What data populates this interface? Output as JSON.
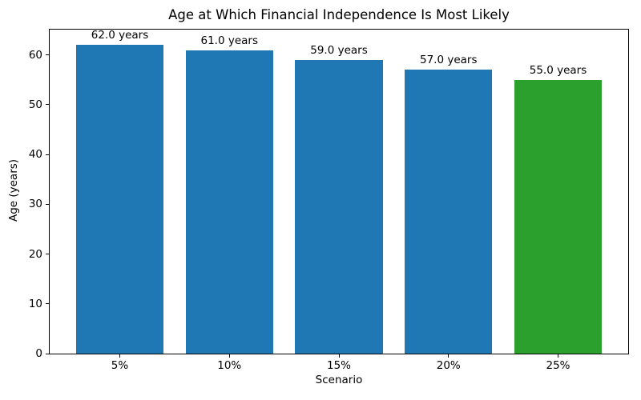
{
  "chart_data": {
    "type": "bar",
    "title": "Age at Which Financial Independence Is Most Likely",
    "xlabel": "Scenario",
    "ylabel": "Age (years)",
    "categories": [
      "5%",
      "10%",
      "15%",
      "20%",
      "25%"
    ],
    "values": [
      62.0,
      61.0,
      59.0,
      57.0,
      55.0
    ],
    "bar_labels": [
      "62.0 years",
      "61.0 years",
      "59.0 years",
      "57.0 years",
      "55.0 years"
    ],
    "bar_colors": [
      "#1f77b4",
      "#1f77b4",
      "#1f77b4",
      "#1f77b4",
      "#2ca02c"
    ],
    "ylim": [
      0,
      65.1
    ],
    "xlim": [
      -0.64,
      4.64
    ],
    "bar_width": 0.8,
    "yticks": [
      0,
      10,
      20,
      30,
      40,
      50,
      60
    ],
    "grid": false,
    "legend": "none",
    "colors": {
      "default_bar": "#1f77b4",
      "highlight_bar": "#2ca02c",
      "text": "#000000",
      "background": "#ffffff",
      "frame": "#000000"
    }
  }
}
